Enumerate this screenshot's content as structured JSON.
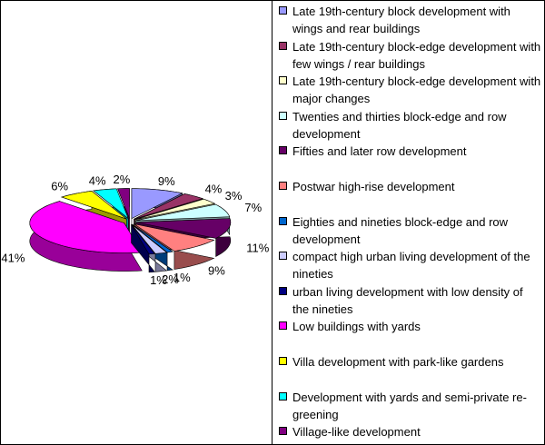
{
  "chart_data": {
    "type": "pie",
    "style": "3d-exploded",
    "legend_position": "right",
    "categories": [
      "Late 19th-century block development with wings and rear buildings",
      "Late 19th-century block-edge development with few wings / rear buildings",
      "Late 19th-century block-edge development with major changes",
      "Twenties and thirties block-edge and row development",
      "Fifties and later row development",
      "Postwar high-rise development",
      "Eighties and nineties block-edge and row development",
      "compact high urban living development of the nineties",
      "urban living development with low density of the nineties",
      "Low buildings with yards",
      "Villa development with park-like gardens",
      "Development with yards and semi-private re-greening",
      "Village-like development"
    ],
    "values": [
      9,
      4,
      3,
      7,
      11,
      9,
      1,
      2,
      1,
      41,
      6,
      4,
      2
    ],
    "data_labels": [
      "9%",
      "4%",
      "3%",
      "7%",
      "11%",
      "9%",
      "1%",
      "2%",
      "1%",
      "41%",
      "6%",
      "4%",
      "2%"
    ],
    "colors": [
      "#9999FF",
      "#993366",
      "#FFFFCC",
      "#CCFFFF",
      "#660066",
      "#FF8080",
      "#0066CC",
      "#CCCCFF",
      "#000080",
      "#FF00FF",
      "#FFFF00",
      "#00FFFF",
      "#800080"
    ]
  }
}
